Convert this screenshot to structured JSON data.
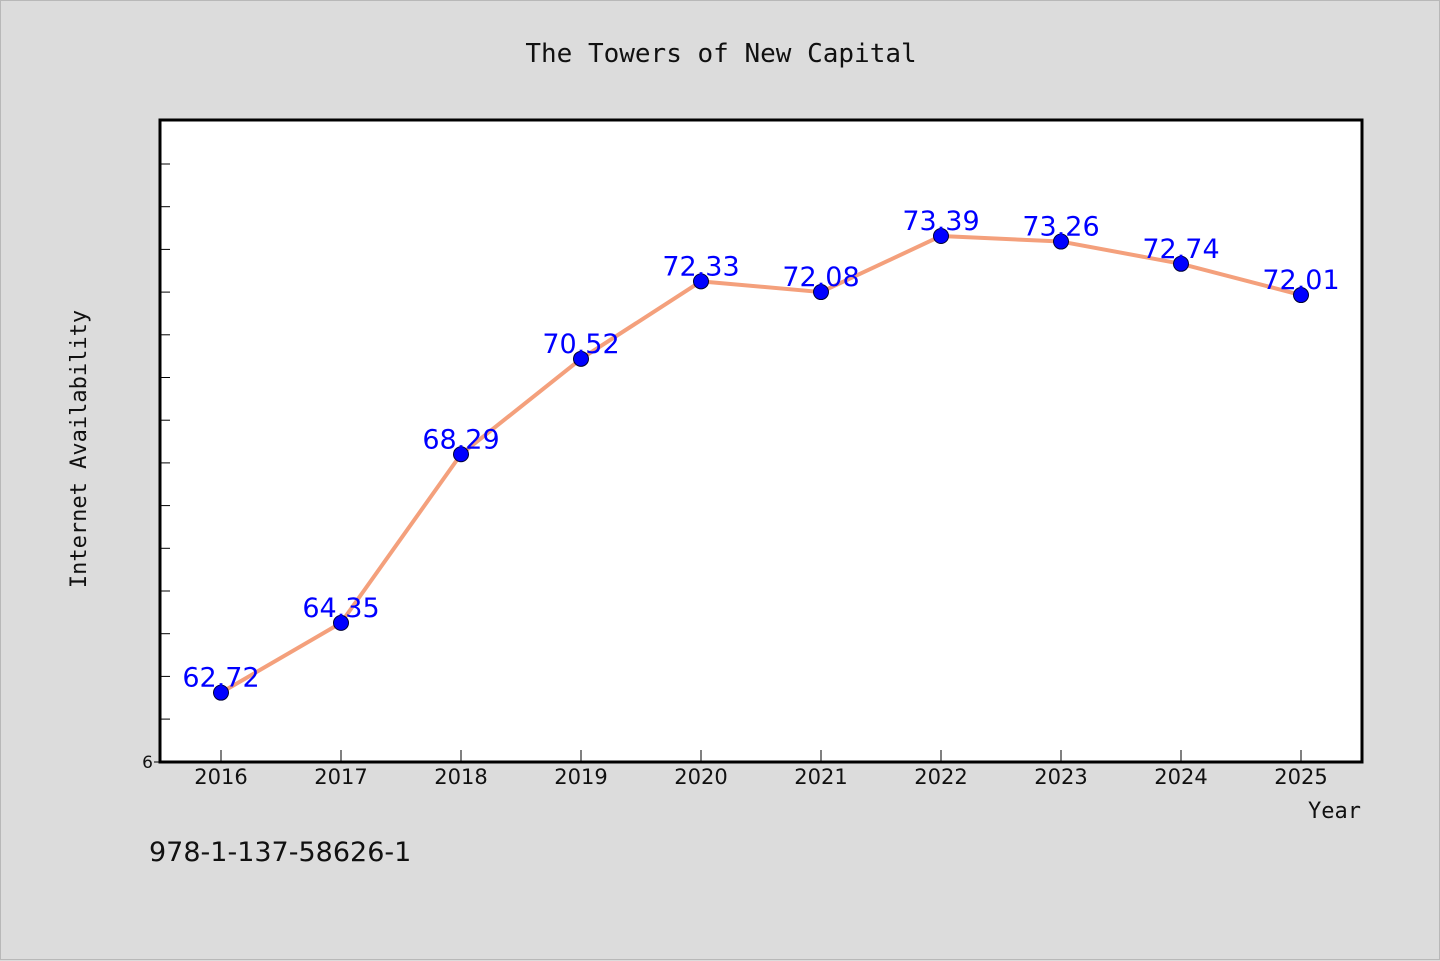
{
  "chart_data": {
    "type": "line",
    "title": "The Towers of New Capital",
    "xlabel": "Year",
    "ylabel": "Internet Availability",
    "x": [
      "2016",
      "2017",
      "2018",
      "2019",
      "2020",
      "2021",
      "2022",
      "2023",
      "2024",
      "2025"
    ],
    "series": [
      {
        "values": [
          62.72,
          64.35,
          68.29,
          70.52,
          72.33,
          72.08,
          73.39,
          73.26,
          72.74,
          72.01
        ],
        "data_labels": [
          "62.72",
          "64.35",
          "68.29",
          "70.52",
          "72.33",
          "72.08",
          "73.39",
          "73.26",
          "72.74",
          "72.01"
        ]
      }
    ],
    "y_tick_label": "6",
    "ylim": [
      61.1,
      76.1
    ],
    "grid": false,
    "legend": "none",
    "colors": {
      "line": "#f4a07c",
      "marker": "#0000ff",
      "data_label": "#0000ff",
      "plot_bg": "#ffffff",
      "figure_bg": "#dcdcdc"
    }
  },
  "footer": {
    "code": "978-1-137-58626-1"
  }
}
